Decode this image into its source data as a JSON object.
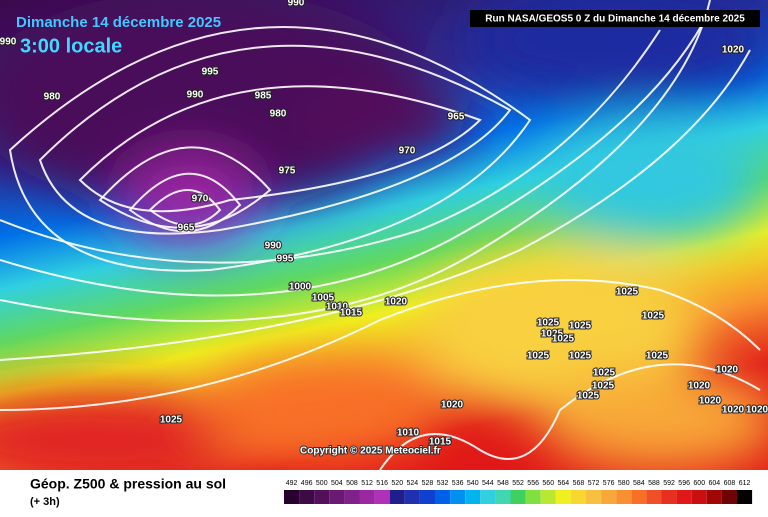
{
  "header": {
    "date": "Dimanche 14 décembre 2025",
    "time": "3:00 locale",
    "run": "Run NASA/GEOS5 0 Z du Dimanche 14 décembre 2025"
  },
  "isobar_labels": [
    "990",
    "990",
    "995",
    "980",
    "990",
    "985",
    "980",
    "965",
    "970",
    "975",
    "970",
    "965",
    "990",
    "995",
    "1000",
    "1005",
    "1010",
    "1015",
    "1020",
    "1025",
    "1025",
    "1025",
    "1025",
    "1025",
    "1025",
    "1025",
    "1025",
    "1025",
    "1025",
    "1025",
    "1025",
    "1020",
    "1020",
    "1020",
    "1020",
    "1020",
    "1020",
    "1025",
    "1010",
    "1015",
    "1020"
  ],
  "copyright": "Copyright © 2025 Meteociel.fr",
  "footer": {
    "title": "Géop. Z500 & pression au sol",
    "subtitle": "(+ 3h)"
  },
  "scale": {
    "ticks": [
      492,
      496,
      500,
      504,
      508,
      512,
      516,
      520,
      524,
      528,
      532,
      536,
      540,
      544,
      548,
      552,
      556,
      560,
      564,
      568,
      572,
      576,
      580,
      584,
      588,
      592,
      596,
      600,
      604,
      608,
      612
    ],
    "colors": [
      "#2a0030",
      "#3d0a45",
      "#52105a",
      "#6a1a72",
      "#80208a",
      "#9a28a2",
      "#b030b8",
      "#1e1e8c",
      "#2030b0",
      "#1040d0",
      "#0060e8",
      "#0090f0",
      "#00b4f0",
      "#30d0e0",
      "#40d8b0",
      "#40d060",
      "#80e040",
      "#b8e830",
      "#f0f020",
      "#f8d830",
      "#f8c040",
      "#f8a838",
      "#f89030",
      "#f87028",
      "#f05028",
      "#e83020",
      "#e01818",
      "#c81010",
      "#a00808",
      "#700404",
      "#000000"
    ]
  }
}
